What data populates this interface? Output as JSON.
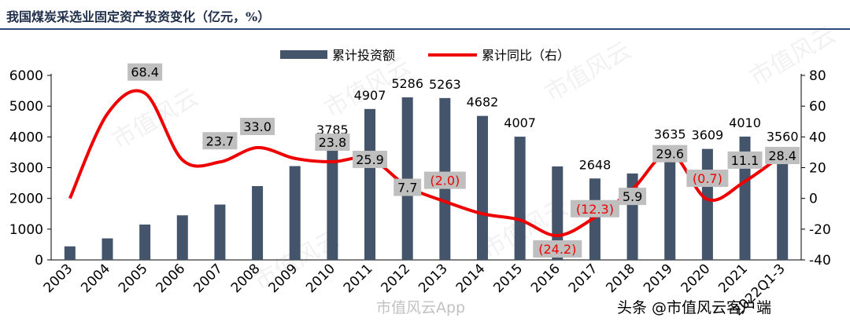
{
  "title": "我国煤炭采选业固定资产投资变化（亿元，%）",
  "chart_data": {
    "type": "bar+line",
    "categories": [
      "2003",
      "2004",
      "2005",
      "2006",
      "2007",
      "2008",
      "2009",
      "2010",
      "2011",
      "2012",
      "2013",
      "2014",
      "2015",
      "2016",
      "2017",
      "2018",
      "2019",
      "2020",
      "2021",
      "2022Q1-3"
    ],
    "series": [
      {
        "name": "累计投资额",
        "axis": "left",
        "type": "bar",
        "values": [
          440,
          700,
          1150,
          1450,
          1800,
          2400,
          3050,
          3785,
          4907,
          5286,
          5263,
          4682,
          4007,
          3040,
          2648,
          2810,
          3635,
          3609,
          4010,
          3560
        ]
      },
      {
        "name": "累计同比（右）",
        "axis": "right",
        "type": "line",
        "values": [
          0,
          55,
          68.4,
          25,
          23.7,
          33.0,
          26,
          23.8,
          25.9,
          7.7,
          -2.0,
          -10,
          -14,
          -24.2,
          -12.3,
          5.9,
          29.6,
          -0.7,
          11.1,
          28.4
        ]
      }
    ],
    "bar_data_labels": [
      {
        "index": 7,
        "text": "3785"
      },
      {
        "index": 8,
        "text": "4907"
      },
      {
        "index": 9,
        "text": "5286"
      },
      {
        "index": 10,
        "text": "5263"
      },
      {
        "index": 11,
        "text": "4682"
      },
      {
        "index": 12,
        "text": "4007"
      },
      {
        "index": 14,
        "text": "2648"
      },
      {
        "index": 16,
        "text": "3635"
      },
      {
        "index": 17,
        "text": "3609"
      },
      {
        "index": 18,
        "text": "4010"
      },
      {
        "index": 19,
        "text": "3560"
      }
    ],
    "line_data_labels": [
      {
        "index": 2,
        "text": "68.4",
        "negative": false
      },
      {
        "index": 4,
        "text": "23.7",
        "negative": false
      },
      {
        "index": 5,
        "text": "33.0",
        "negative": false
      },
      {
        "index": 7,
        "text": "23.8",
        "negative": false
      },
      {
        "index": 8,
        "text": "25.9",
        "negative": false
      },
      {
        "index": 9,
        "text": "7.7",
        "negative": false
      },
      {
        "index": 10,
        "text": "(2.0)",
        "negative": true
      },
      {
        "index": 13,
        "text": "(24.2)",
        "negative": true
      },
      {
        "index": 14,
        "text": "(12.3)",
        "negative": true
      },
      {
        "index": 15,
        "text": "5.9",
        "negative": false
      },
      {
        "index": 16,
        "text": "29.6",
        "negative": false
      },
      {
        "index": 17,
        "text": "(0.7)",
        "negative": true
      },
      {
        "index": 18,
        "text": "11.1",
        "negative": false
      },
      {
        "index": 19,
        "text": "28.4",
        "negative": false
      }
    ],
    "y_left": {
      "min": 0,
      "max": 6000,
      "ticks": [
        "0",
        "1000",
        "2000",
        "3000",
        "4000",
        "5000",
        "6000"
      ]
    },
    "y_right": {
      "min": -40,
      "max": 80,
      "ticks": [
        "-40",
        "-20",
        "0",
        "20",
        "40",
        "60",
        "80"
      ]
    },
    "legend": {
      "position": "top-center",
      "items": [
        "累计投资额",
        "累计同比（右）"
      ]
    },
    "grid": false
  },
  "colors": {
    "bar": "#44546a",
    "line": "#ee0000",
    "label_box": "#bfbfbf",
    "negative_label": "#ee0000"
  },
  "watermarks": [
    "市值风云",
    "市值风云",
    "市值风云",
    "市值风云",
    "市值风云",
    "市值风云"
  ],
  "footer": {
    "left": "市值风云App",
    "right": "头条 @市值风云客户端"
  }
}
